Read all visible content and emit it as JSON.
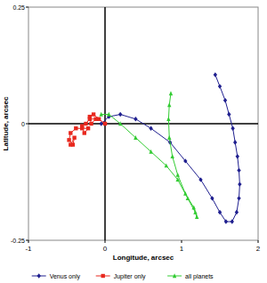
{
  "chart_data": {
    "type": "line",
    "x_label": "Longitude, arcsec",
    "y_label": "Latitude, arcsec",
    "xlim": [
      -1,
      2
    ],
    "xticks": [
      -1,
      0,
      1,
      2
    ],
    "ylim": [
      -0.25,
      0.25
    ],
    "yticks": [
      -0.25,
      0,
      0.25
    ],
    "grid": false,
    "legend": "bottom",
    "series": [
      {
        "name": "Venus only",
        "color": "#1f1f8f",
        "marker": "diamond",
        "x": [
          1.44,
          1.5,
          1.57,
          1.62,
          1.67,
          1.7,
          1.73,
          1.75,
          1.76,
          1.75,
          1.72,
          1.66,
          1.58,
          1.5,
          1.4,
          1.25,
          1.05,
          0.85,
          0.6,
          0.4,
          0.2,
          0.05,
          -0.05
        ],
        "values": [
          0.105,
          0.08,
          0.05,
          0.02,
          -0.01,
          -0.04,
          -0.07,
          -0.1,
          -0.13,
          -0.16,
          -0.19,
          -0.21,
          -0.21,
          -0.19,
          -0.16,
          -0.12,
          -0.08,
          -0.04,
          -0.01,
          0.01,
          0.02,
          0.015,
          0.0
        ]
      },
      {
        "name": "Jupiter only",
        "color": "#e8281e",
        "marker": "square",
        "x": [
          0.0,
          -0.08,
          -0.15,
          -0.2,
          -0.18,
          -0.12,
          -0.2,
          -0.25,
          -0.3,
          -0.27,
          -0.22,
          -0.3,
          -0.38,
          -0.45,
          -0.47,
          -0.42,
          -0.4,
          -0.45
        ],
        "values": [
          0.0,
          0.01,
          0.02,
          0.015,
          0.0,
          0.01,
          0.01,
          0.0,
          -0.005,
          -0.02,
          -0.01,
          -0.01,
          -0.01,
          -0.02,
          -0.035,
          -0.045,
          -0.03,
          -0.045
        ]
      },
      {
        "name": "all planets",
        "color": "#33cc33",
        "marker": "triangle",
        "x": [
          -0.05,
          0.05,
          0.2,
          0.4,
          0.6,
          0.8,
          0.95,
          1.08,
          1.18,
          1.2,
          1.16,
          1.05,
          0.95,
          0.88,
          0.84,
          0.83,
          0.84,
          0.86
        ],
        "values": [
          0.02,
          0.02,
          0.0,
          -0.03,
          -0.06,
          -0.09,
          -0.12,
          -0.16,
          -0.19,
          -0.2,
          -0.18,
          -0.15,
          -0.11,
          -0.07,
          -0.03,
          0.01,
          0.04,
          0.065
        ]
      }
    ]
  }
}
